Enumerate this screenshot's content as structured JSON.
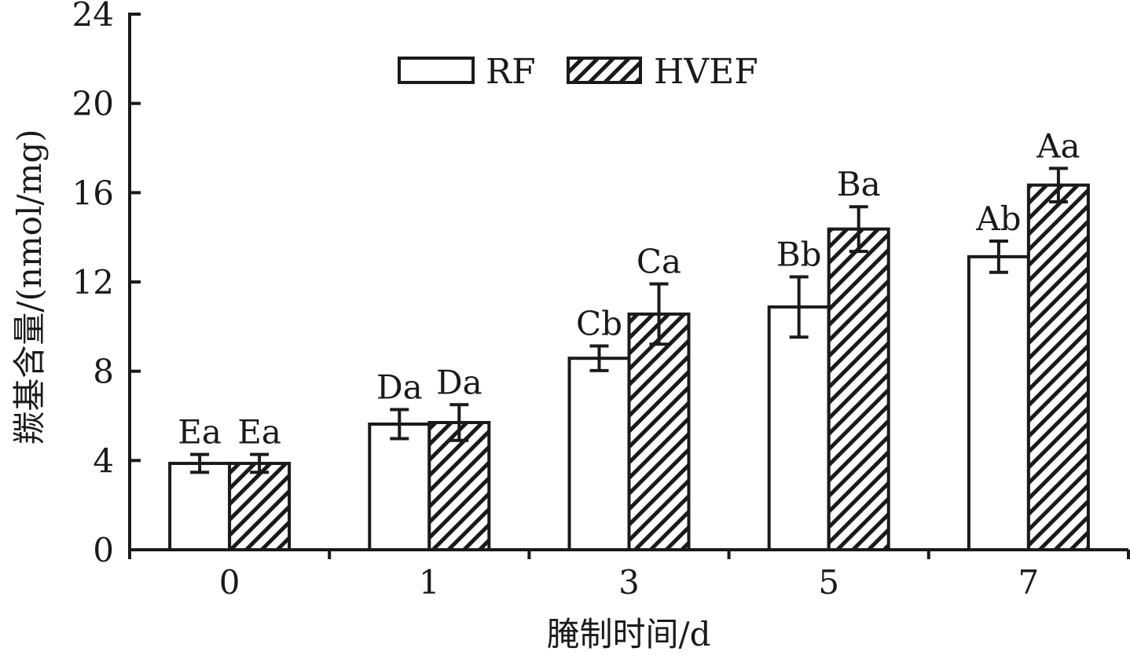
{
  "chart_data": {
    "type": "bar",
    "title": "",
    "xlabel": "腌制时间/d",
    "ylabel": "羰基含量/(nmol/mg)",
    "ylim": [
      0,
      24
    ],
    "yticks": [
      0,
      4,
      8,
      12,
      16,
      20,
      24
    ],
    "categories": [
      "0",
      "1",
      "3",
      "5",
      "7"
    ],
    "legend_position": "top-center",
    "grid": false,
    "series": [
      {
        "name": "RF",
        "fill": "white",
        "values": [
          3.87,
          5.63,
          8.58,
          10.88,
          13.13
        ],
        "errors": [
          0.4,
          0.65,
          0.55,
          1.35,
          0.7
        ],
        "labels": [
          "Ea",
          "Da",
          "Cb",
          "Bb",
          "Ab"
        ]
      },
      {
        "name": "HVEF",
        "fill": "hatched",
        "values": [
          3.87,
          5.7,
          10.56,
          14.37,
          16.34
        ],
        "errors": [
          0.4,
          0.8,
          1.35,
          1.0,
          0.75
        ],
        "labels": [
          "Ea",
          "Da",
          "Ca",
          "Ba",
          "Aa"
        ]
      }
    ]
  }
}
